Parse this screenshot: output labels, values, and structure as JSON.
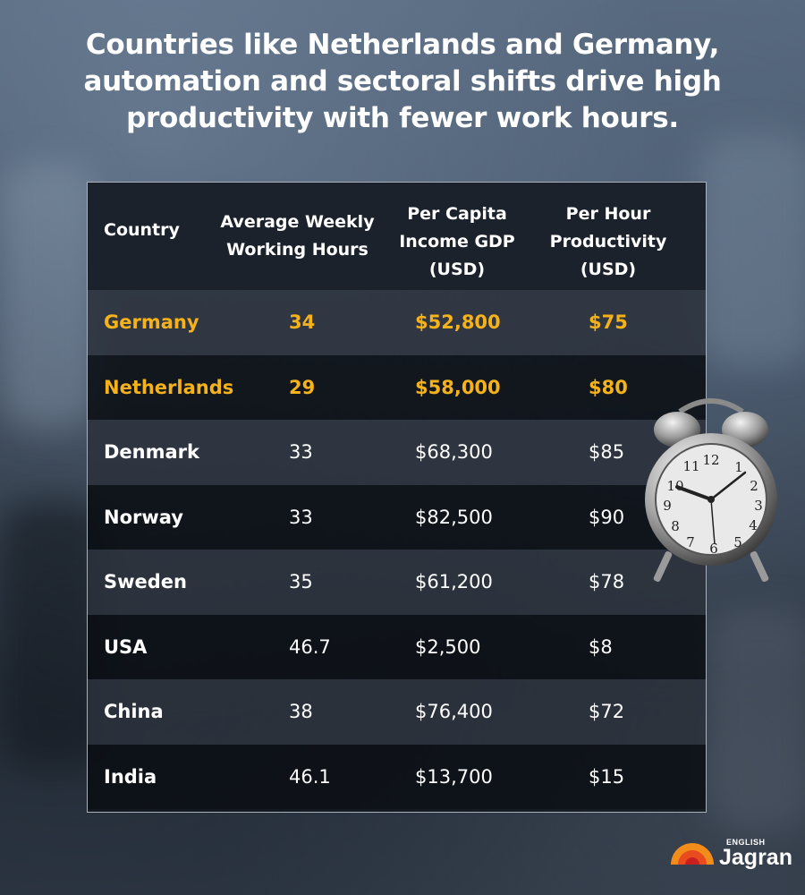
{
  "title": "Countries like Netherlands and Germany, automation and sectoral shifts drive high productivity with fewer work hours.",
  "table": {
    "headers": [
      "Country",
      "Average Weekly Working Hours",
      "Per Capita Income GDP (USD)",
      "Per Hour Productivity (USD)"
    ],
    "rows": [
      {
        "country": "Germany",
        "hours": "34",
        "income": "$52,800",
        "productivity": "$75",
        "highlight": true
      },
      {
        "country": "Netherlands",
        "hours": "29",
        "income": "$58,000",
        "productivity": "$80",
        "highlight": true
      },
      {
        "country": "Denmark",
        "hours": "33",
        "income": "$68,300",
        "productivity": "$85",
        "highlight": false
      },
      {
        "country": "Norway",
        "hours": "33",
        "income": "$82,500",
        "productivity": "$90",
        "highlight": false
      },
      {
        "country": "Sweden",
        "hours": "35",
        "income": "$61,200",
        "productivity": "$78",
        "highlight": false
      },
      {
        "country": "USA",
        "hours": "46.7",
        "income": "$2,500",
        "productivity": "$8",
        "highlight": false
      },
      {
        "country": "China",
        "hours": "38",
        "income": "$76,400",
        "productivity": "$72",
        "highlight": false
      },
      {
        "country": "India",
        "hours": "46.1",
        "income": "$13,700",
        "productivity": "$15",
        "highlight": false
      }
    ]
  },
  "colors": {
    "highlight": "#f5b21a",
    "text": "#ffffff"
  },
  "logo": {
    "small": "ENGLISH",
    "main": "Jagran"
  },
  "clock_icon": "alarm-clock-icon"
}
